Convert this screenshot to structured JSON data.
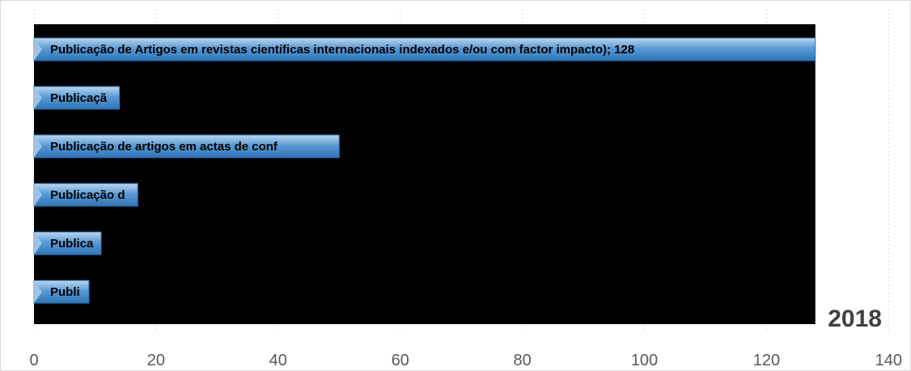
{
  "chart_data": {
    "type": "bar",
    "orientation": "horizontal",
    "year_label": "2018",
    "xlim": [
      0,
      140
    ],
    "x_ticks": [
      "0",
      "20",
      "40",
      "60",
      "80",
      "100",
      "120",
      "140"
    ],
    "grid": "vertical dotted",
    "bars": [
      {
        "label": "Publicação de Artigos em revistas científicas internacionais indexados e/ou com factor impacto); 128",
        "value": 128
      },
      {
        "label": "Publicaçã",
        "value": 14
      },
      {
        "label": "Publicação de artigos em actas de conf",
        "value": 50
      },
      {
        "label": "Publicação d",
        "value": 17
      },
      {
        "label": "Publica",
        "value": 11
      },
      {
        "label": "Publi",
        "value": 9
      }
    ]
  },
  "colors": {
    "plot_background": "#000000",
    "bar_fill": "#5b9bd5",
    "bar_light": "#9dc3e6",
    "bar_border": "#2e75b6",
    "gridline": "#bfbfbf",
    "tick_text": "#595959",
    "year_text": "#404040"
  }
}
